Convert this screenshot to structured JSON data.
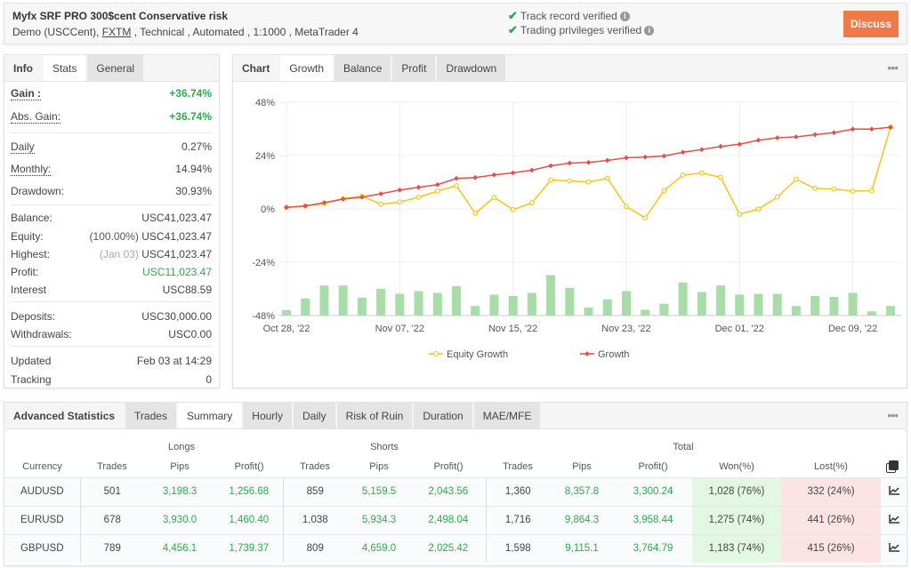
{
  "header": {
    "title": "Myfx SRF PRO 300$cent Conservative risk",
    "sub_prefix": "Demo (USCCent), ",
    "broker": "FXTM",
    "sub_suffix": " , Technical , Automated , 1:1000 , MetaTrader 4",
    "verified": [
      "Track record verified",
      "Trading privileges verified"
    ],
    "discuss": "Discuss"
  },
  "left": {
    "tabs": [
      "Info",
      "Stats",
      "General"
    ],
    "active_tab": "Stats",
    "stats": [
      {
        "k": "Gain :",
        "v": "+36.74%"
      },
      {
        "k": "Abs. Gain:",
        "v": "+36.74%"
      },
      {
        "k": "Daily",
        "v": "0.27%"
      },
      {
        "k": "Monthly:",
        "v": "14.94%"
      },
      {
        "k": "Drawdown:",
        "v": "30.93%"
      },
      {
        "k": "Balance:",
        "v": "USC41,023.47"
      },
      {
        "k": "Equity:",
        "pre": "(100.00%)",
        "v": "USC41,023.47"
      },
      {
        "k": "Highest:",
        "pre": "(Jan 03)",
        "v": "USC41,023.47"
      },
      {
        "k": "Profit:",
        "v": "USC11,023.47"
      },
      {
        "k": "Interest",
        "v": "USC88.59"
      },
      {
        "k": "Deposits:",
        "v": "USC30,000.00"
      },
      {
        "k": "Withdrawals:",
        "v": "USC0.00"
      },
      {
        "k": "Updated",
        "v": "Feb 03 at 14:29"
      },
      {
        "k": "Tracking",
        "v": "0"
      }
    ]
  },
  "chart": {
    "tabs": [
      "Chart",
      "Growth",
      "Balance",
      "Profit",
      "Drawdown"
    ],
    "active_tab": "Growth",
    "more": "•••"
  },
  "chart_data": {
    "type": "line",
    "yticks": [
      "48%",
      "24%",
      "0%",
      "-24%",
      "-48%"
    ],
    "ylim": [
      -48,
      48
    ],
    "xlabels": [
      {
        "i": 0,
        "t": "Oct 28, '22"
      },
      {
        "i": 6,
        "t": "Nov 07, '22"
      },
      {
        "i": 12,
        "t": "Nov 15, '22"
      },
      {
        "i": 18,
        "t": "Nov 23, '22"
      },
      {
        "i": 24,
        "t": "Dec 01, '22"
      },
      {
        "i": 30,
        "t": "Dec 09, '22"
      }
    ],
    "grid": true,
    "legend": "bottom",
    "series": [
      {
        "name": "Equity Growth",
        "color": "#f5c518",
        "values": [
          0.7,
          1.3,
          2.4,
          4.7,
          5.7,
          2.1,
          3.1,
          5.2,
          8.0,
          10.4,
          -2.0,
          5.2,
          -0.3,
          2.7,
          13.0,
          12.6,
          12.1,
          13.8,
          1.1,
          -4.1,
          8.2,
          15.2,
          16.1,
          14.2,
          -2.4,
          -0.1,
          5.3,
          13.3,
          9.2,
          8.9,
          8.0,
          8.2,
          36.74
        ]
      },
      {
        "name": "Growth",
        "color": "#e0514a",
        "values": [
          0.7,
          1.3,
          2.8,
          4.4,
          5.3,
          6.8,
          8.5,
          9.7,
          10.9,
          13.7,
          14.1,
          15.3,
          16.2,
          17.4,
          19.4,
          20.6,
          20.9,
          21.8,
          23.0,
          23.3,
          23.8,
          25.5,
          26.7,
          28.1,
          29.1,
          30.9,
          32.0,
          32.4,
          33.4,
          34.3,
          35.9,
          35.9,
          36.74
        ]
      }
    ],
    "bars": {
      "color": "#a8dca8",
      "values": [
        2.4,
        7.7,
        13.5,
        13.5,
        8.0,
        12.1,
        9.8,
        11.0,
        10.2,
        13.2,
        4.3,
        9.4,
        8.8,
        10.2,
        18.2,
        12.5,
        3.6,
        7.3,
        11.0,
        2.6,
        5.3,
        14.9,
        10.6,
        13.5,
        9.4,
        9.8,
        9.8,
        4.3,
        8.8,
        8.4,
        10.2,
        1.9,
        4.3
      ]
    }
  },
  "bottom": {
    "tabs": [
      "Advanced Statistics",
      "Trades",
      "Summary",
      "Hourly",
      "Daily",
      "Risk of Ruin",
      "Duration",
      "MAE/MFE"
    ],
    "active_tab": "Summary",
    "more": "•••",
    "groups": [
      "Longs",
      "Shorts",
      "Total"
    ],
    "columns": [
      "Currency",
      "Trades",
      "Pips",
      "Profit()",
      "Trades",
      "Pips",
      "Profit()",
      "Trades",
      "Pips",
      "Profit()",
      "Won(%)",
      "Lost(%)"
    ],
    "rows": [
      [
        "AUDUSD",
        "501",
        "3,198.3",
        "1,256.68",
        "859",
        "5,159.5",
        "2,043.56",
        "1,360",
        "8,357.8",
        "3,300.24",
        "1,028 (76%)",
        "332 (24%)"
      ],
      [
        "EURUSD",
        "678",
        "3,930.0",
        "1,460.40",
        "1,038",
        "5,934.3",
        "2,498.04",
        "1,716",
        "9,864.3",
        "3,958.44",
        "1,275 (74%)",
        "441 (26%)"
      ],
      [
        "GBPUSD",
        "789",
        "4,456.1",
        "1,739.37",
        "809",
        "4,659.0",
        "2,025.42",
        "1,598",
        "9,115.1",
        "3,764.79",
        "1,183 (74%)",
        "415 (26%)"
      ]
    ]
  }
}
